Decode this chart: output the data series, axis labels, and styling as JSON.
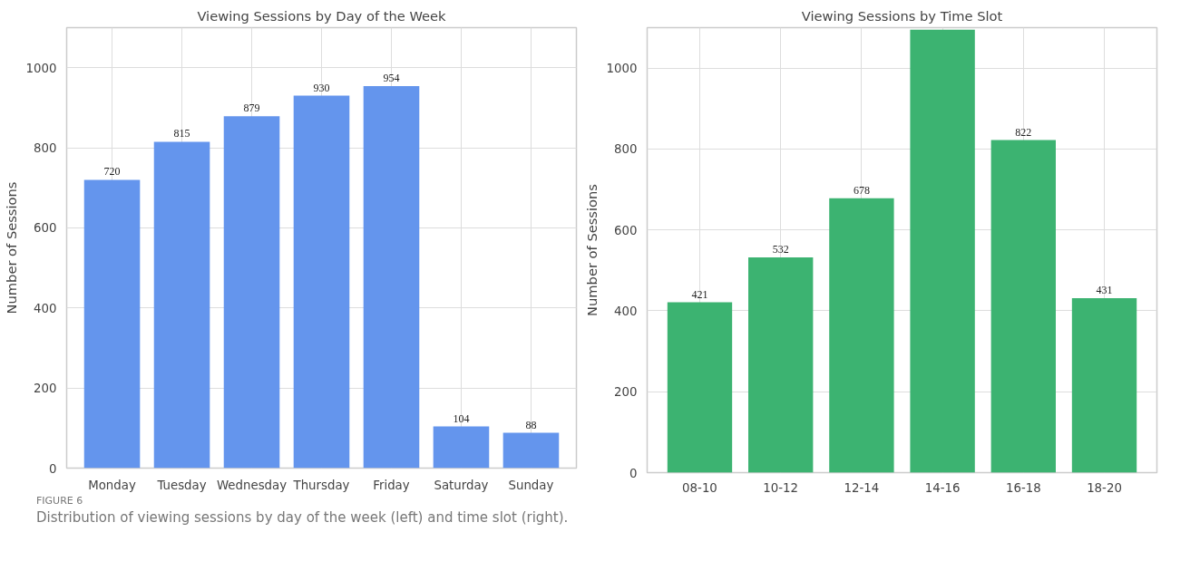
{
  "chart_data": [
    {
      "type": "bar",
      "title": "Viewing Sessions by Day of the Week",
      "ylabel": "Number of Sessions",
      "categories": [
        "Monday",
        "Tuesday",
        "Wednesday",
        "Thursday",
        "Friday",
        "Saturday",
        "Sunday"
      ],
      "values": [
        720,
        815,
        879,
        930,
        954,
        104,
        88
      ],
      "color": "#6495ed",
      "ylim": [
        0,
        1100
      ],
      "yticks": [
        0,
        200,
        400,
        600,
        800,
        1000
      ],
      "grid": true,
      "data_labels": true,
      "annotations": [
        "FIGURE 6",
        "Distribution of viewing sessions by day of the week (left) and time slot (right)."
      ]
    },
    {
      "type": "bar",
      "title": "Viewing Sessions by Time Slot",
      "ylabel": "Number of Sessions",
      "categories": [
        "08-10",
        "10-12",
        "12-14",
        "14-16",
        "16-18",
        "18-20"
      ],
      "values": [
        421,
        532,
        678,
        1095,
        822,
        431
      ],
      "color": "#3cb371",
      "ylim": [
        0,
        1100
      ],
      "yticks": [
        0,
        200,
        400,
        600,
        800,
        1000
      ],
      "grid": true,
      "value_labels": [
        "421",
        "532",
        "678",
        null,
        "822",
        "431"
      ]
    }
  ]
}
